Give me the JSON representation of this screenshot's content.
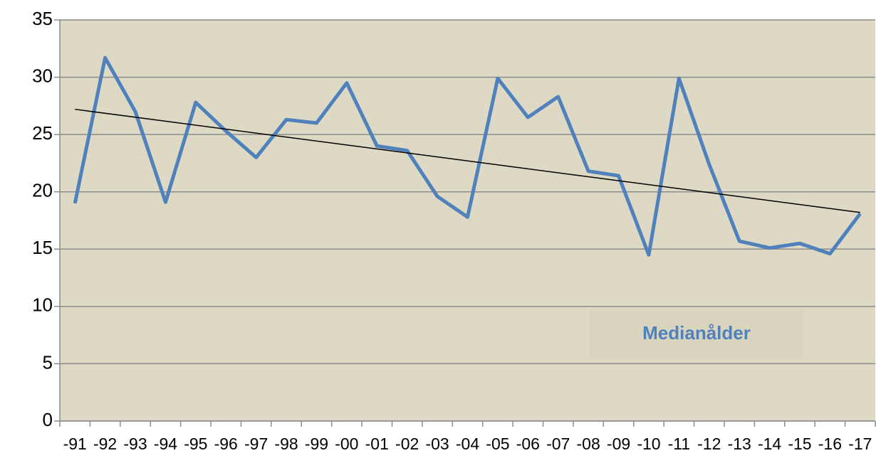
{
  "chart_data": {
    "type": "line",
    "categories": [
      "-91",
      "-92",
      "-93",
      "-94",
      "-95",
      "-96",
      "-97",
      "-98",
      "-99",
      "-00",
      "-01",
      "-02",
      "-03",
      "-04",
      "-05",
      "-06",
      "-07",
      "-08",
      "-09",
      "-10",
      "-11",
      "-12",
      "-13",
      "-14",
      "-15",
      "-16",
      "-17"
    ],
    "series": [
      {
        "name": "Medianålder",
        "color": "#4f81bd",
        "values": [
          19.0,
          31.7,
          27.0,
          19.1,
          27.8,
          25.3,
          23.0,
          26.3,
          26.0,
          29.5,
          24.0,
          23.6,
          19.6,
          17.8,
          29.9,
          26.5,
          28.3,
          21.8,
          21.4,
          14.5,
          29.9,
          22.4,
          15.7,
          15.1,
          15.5,
          14.6,
          18.1
        ]
      }
    ],
    "trendline": {
      "color": "#000000",
      "values": [
        27.2,
        18.2
      ]
    },
    "ylim": [
      0,
      35
    ],
    "yticks": [
      0,
      5,
      10,
      15,
      20,
      25,
      30,
      35
    ],
    "grid": true,
    "legend": "lower right"
  }
}
